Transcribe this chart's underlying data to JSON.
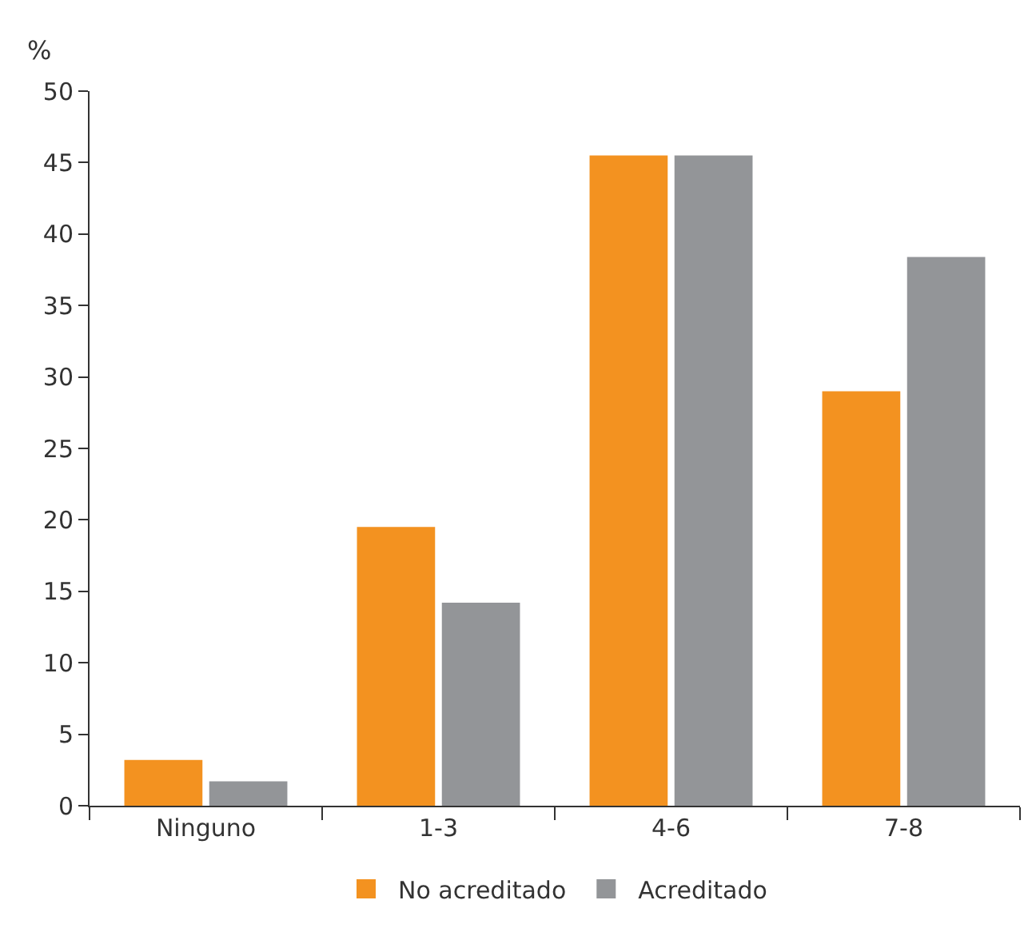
{
  "chart_data": {
    "type": "bar",
    "ylabel": "%",
    "categories": [
      "Ninguno",
      "1-3",
      "4-6",
      "7-8"
    ],
    "series": [
      {
        "name": "No acreditado",
        "color": "#f39220",
        "values": [
          3.2,
          19.5,
          45.5,
          29.0
        ]
      },
      {
        "name": "Acreditado",
        "color": "#939598",
        "values": [
          1.7,
          14.2,
          45.5,
          38.4
        ]
      }
    ],
    "ylim": [
      0,
      50
    ],
    "yticks": [
      0,
      5,
      10,
      15,
      20,
      25,
      30,
      35,
      40,
      45,
      50
    ],
    "grid": false,
    "legend": "bottom"
  }
}
